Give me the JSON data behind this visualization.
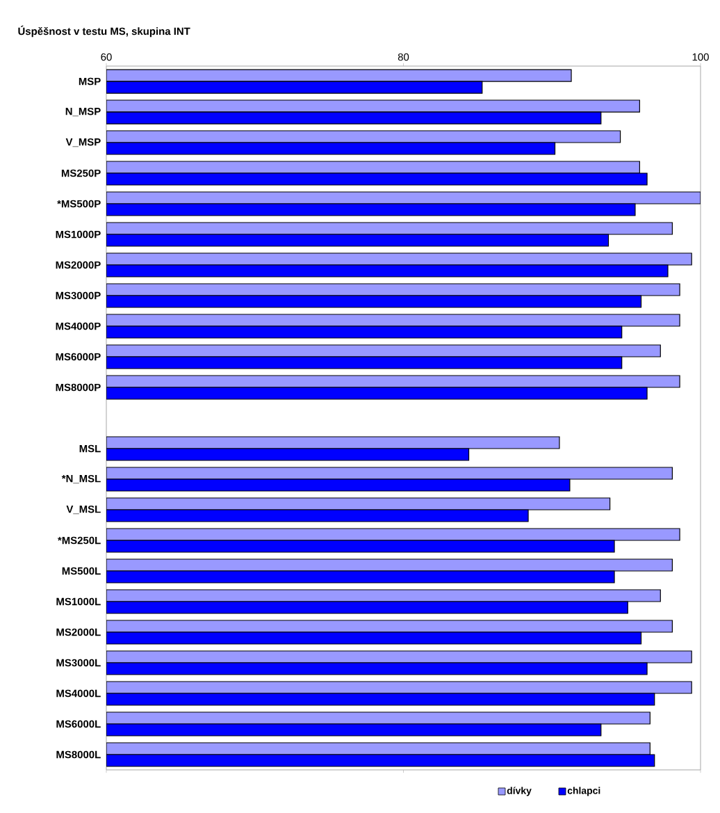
{
  "chart_data": {
    "type": "bar",
    "orientation": "horizontal",
    "title": "Úspěšnost v testu MS, skupina INT",
    "categories": [
      "MSP",
      "N_MSP",
      "V_MSP",
      "MS250P",
      "*MS500P",
      "MS1000P",
      "MS2000P",
      "MS3000P",
      "MS4000P",
      "MS6000P",
      "MS8000P",
      null,
      "MSL",
      "*N_MSL",
      "V_MSL",
      "*MS250L",
      "MS500L",
      "MS1000L",
      "MS2000L",
      "MS3000L",
      "MS4000L",
      "MS6000L",
      "MS8000L"
    ],
    "series": [
      {
        "name": "dívky",
        "color": "#9999ff",
        "values": [
          91.3,
          95.9,
          94.6,
          95.9,
          100,
          98.1,
          99.4,
          98.6,
          98.6,
          97.3,
          98.6,
          null,
          90.5,
          98.1,
          93.9,
          98.6,
          98.1,
          97.3,
          98.1,
          99.4,
          99.4,
          96.6,
          96.6
        ]
      },
      {
        "name": "chlapci",
        "color": "#0000ff",
        "values": [
          85.3,
          93.3,
          90.2,
          96.4,
          95.6,
          93.8,
          97.8,
          96.0,
          94.7,
          94.7,
          96.4,
          null,
          84.4,
          91.2,
          88.4,
          94.2,
          94.2,
          95.1,
          96.0,
          96.4,
          96.9,
          93.3,
          96.9
        ]
      }
    ],
    "xlim": [
      60,
      100
    ],
    "xticks": [
      60,
      80,
      100
    ],
    "grid": false,
    "legend": "bottom right"
  }
}
